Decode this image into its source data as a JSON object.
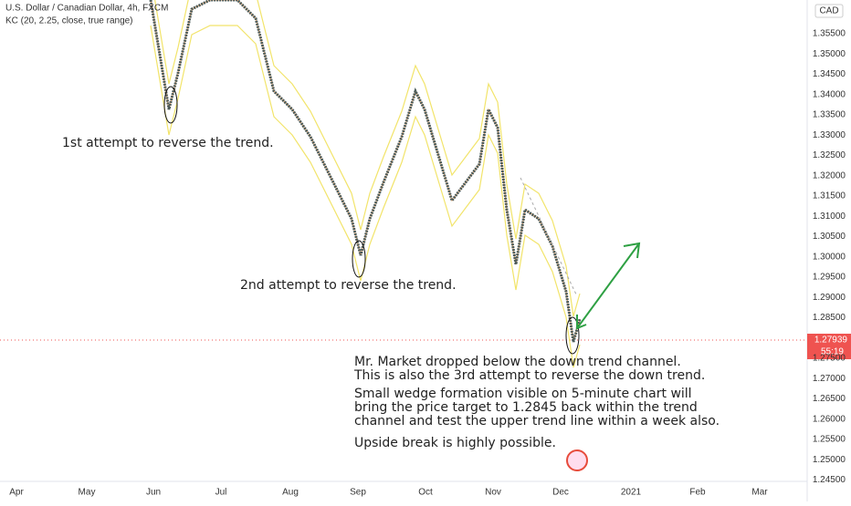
{
  "header": {
    "symbol": "U.S. Dollar / Canadian Dollar, 4h, FXCM",
    "indicator": "KC (20, 2.25, close, true range)",
    "currency": "CAD"
  },
  "price_axis": {
    "labels": [
      "1.35500",
      "1.35000",
      "1.34500",
      "1.34000",
      "1.33500",
      "1.33000",
      "1.32500",
      "1.32000",
      "1.31500",
      "1.31000",
      "1.30500",
      "1.30000",
      "1.29500",
      "1.29000",
      "1.28500",
      "1.27500",
      "1.27000",
      "1.26500",
      "1.26000",
      "1.25500",
      "1.25000",
      "1.24500"
    ],
    "current_price": "1.27939",
    "countdown": "55:19"
  },
  "time_axis": {
    "labels": [
      "Apr",
      "May",
      "Jun",
      "Jul",
      "Aug",
      "Sep",
      "Oct",
      "Nov",
      "Dec",
      "2021",
      "Feb",
      "Mar"
    ]
  },
  "annotations": {
    "first": "1st attempt to reverse the trend.",
    "second": "2nd attempt to reverse the trend.",
    "note": [
      "Mr. Market dropped below the down trend channel.",
      "This is also the 3rd attempt to reverse the down trend.",
      "Small wedge formation visible on 5-minute chart will",
      "bring the price target to 1.2845 back within the trend",
      "channel and test the upper trend line within a week also.",
      "Upside break is highly possible."
    ]
  }
}
